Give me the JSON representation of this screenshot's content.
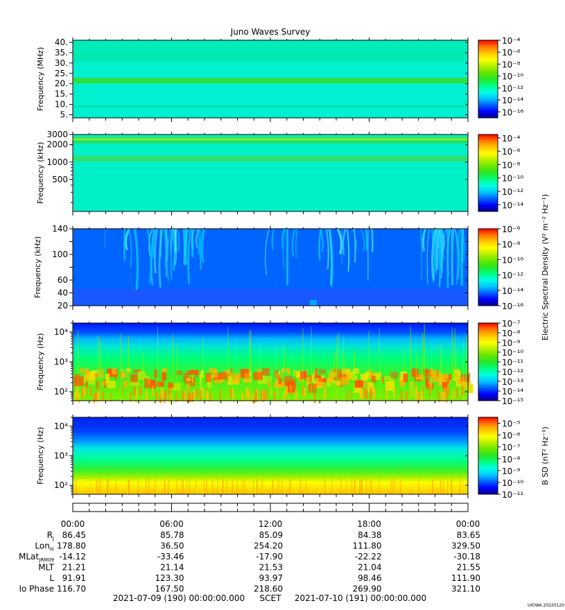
{
  "chart_data": {
    "type": "heatmap",
    "title": "Juno Waves Survey",
    "panels": [
      {
        "ylabel": "Frequency (MHz)",
        "yscale": "linear",
        "ylim": [
          3.5,
          41
        ],
        "yticks": [
          5,
          10,
          15,
          20,
          25,
          30,
          35,
          40
        ],
        "ytick_labels": [
          "5.",
          "10.",
          "15.",
          "20.",
          "25.",
          "30.",
          "35.",
          "40."
        ],
        "colorbar": {
          "label": "",
          "range_exp": [
            -17,
            -4
          ],
          "tick_exps": [
            -4,
            -6,
            -8,
            -10,
            -12,
            -14,
            -16
          ]
        },
        "features": "uniform background with narrow enhanced band near 21.5 MHz"
      },
      {
        "ylabel": "Frequency (kHz)",
        "yscale": "log",
        "ylim": [
          140,
          3000
        ],
        "yticks": [
          500,
          1000,
          2000,
          3000
        ],
        "ytick_labels": [
          "500",
          "1000",
          "2000",
          "3000"
        ],
        "colorbar": {
          "label": "",
          "range_exp": [
            -15,
            -3.5
          ],
          "tick_exps": [
            -4,
            -6,
            -8,
            -10,
            -12,
            -14
          ]
        },
        "features": "uniform background with enhanced bands near 1100 kHz and 2200-2600 kHz"
      },
      {
        "ylabel": "Frequency (kHz)",
        "yscale": "linear",
        "ylim": [
          20,
          140
        ],
        "yticks": [
          20,
          40,
          60,
          80,
          100,
          120,
          140
        ],
        "ytick_labels": [
          "20",
          "40",
          "60",
          "",
          "100",
          "",
          "140"
        ],
        "colorbar": {
          "label": "Electric Spectral Density (V² m⁻² Hz⁻¹)",
          "range_exp": [
            -16,
            -6
          ],
          "tick_exps": [
            -6,
            -8,
            -10,
            -12,
            -14,
            -16
          ]
        },
        "features": "bursty arc-shaped emissions extending downward from top"
      },
      {
        "ylabel": "Frequency (Hz)",
        "yscale": "log",
        "ylim": [
          50,
          20000
        ],
        "yticks": [
          100,
          1000,
          10000
        ],
        "ytick_labels": [
          "10²",
          "10³",
          "10⁴"
        ],
        "colorbar": {
          "label": "",
          "range_exp": [
            -15,
            -7
          ],
          "tick_exps": [
            -7,
            -8,
            -9,
            -10,
            -11,
            -12,
            -13,
            -14,
            -15
          ]
        },
        "features": "intense broadband emission below ~2 kHz with patchy strong emission near 200 Hz"
      },
      {
        "ylabel": "Frequency (Hz)",
        "yscale": "log",
        "ylim": [
          50,
          20000
        ],
        "yticks": [
          100,
          1000,
          10000
        ],
        "ytick_labels": [
          "10²",
          "10³",
          "10⁴"
        ],
        "colorbar": {
          "label": "B SD (nT² Hz⁻¹)",
          "range_exp": [
            -11,
            -4.5
          ],
          "tick_exps": [
            -5,
            -6,
            -7,
            -8,
            -9,
            -10,
            -11
          ]
        },
        "features": "smooth gradient, strongest at low frequencies"
      }
    ],
    "x": {
      "start_label": "2021-07-09 (190) 00:00:00.000",
      "end_label": "2021-07-10 (191) 00:00:00.000",
      "scet_label": "SCET",
      "tick_labels": [
        "00:00",
        "06:00",
        "12:00",
        "18:00",
        "00:00"
      ]
    },
    "ephemeris": {
      "rows": [
        {
          "label": "R",
          "sub": "J",
          "values": [
            "86.45",
            "85.78",
            "85.09",
            "84.38",
            "83.65"
          ]
        },
        {
          "label": "Lon",
          "sub": "III",
          "values": [
            "178.80",
            "36.50",
            "254.20",
            "111.80",
            "329.50"
          ]
        },
        {
          "label": "MLat",
          "sub": "JRM09",
          "values": [
            "-14.12",
            "-33.46",
            "-17.90",
            "-22.22",
            "-30.18"
          ]
        },
        {
          "label": "MLT",
          "sub": "",
          "values": [
            "21.21",
            "21.14",
            "21.53",
            "21.04",
            "21.55"
          ]
        },
        {
          "label": "L",
          "sub": "",
          "values": [
            "91.91",
            "123.30",
            "93.97",
            "98.46",
            "111.90"
          ]
        },
        {
          "label": "Io Phase",
          "sub": "",
          "values": [
            "116.70",
            "167.50",
            "218.60",
            "269.90",
            "321.10"
          ]
        }
      ]
    },
    "footer_tag": "UIOWA 20220120",
    "colormap": [
      "#08008c",
      "#0000ff",
      "#0064ff",
      "#00c8ff",
      "#00ffe6",
      "#00ff80",
      "#26e626",
      "#64e600",
      "#b4f000",
      "#ffff00",
      "#ffc800",
      "#ff7800",
      "#ff0000"
    ]
  }
}
